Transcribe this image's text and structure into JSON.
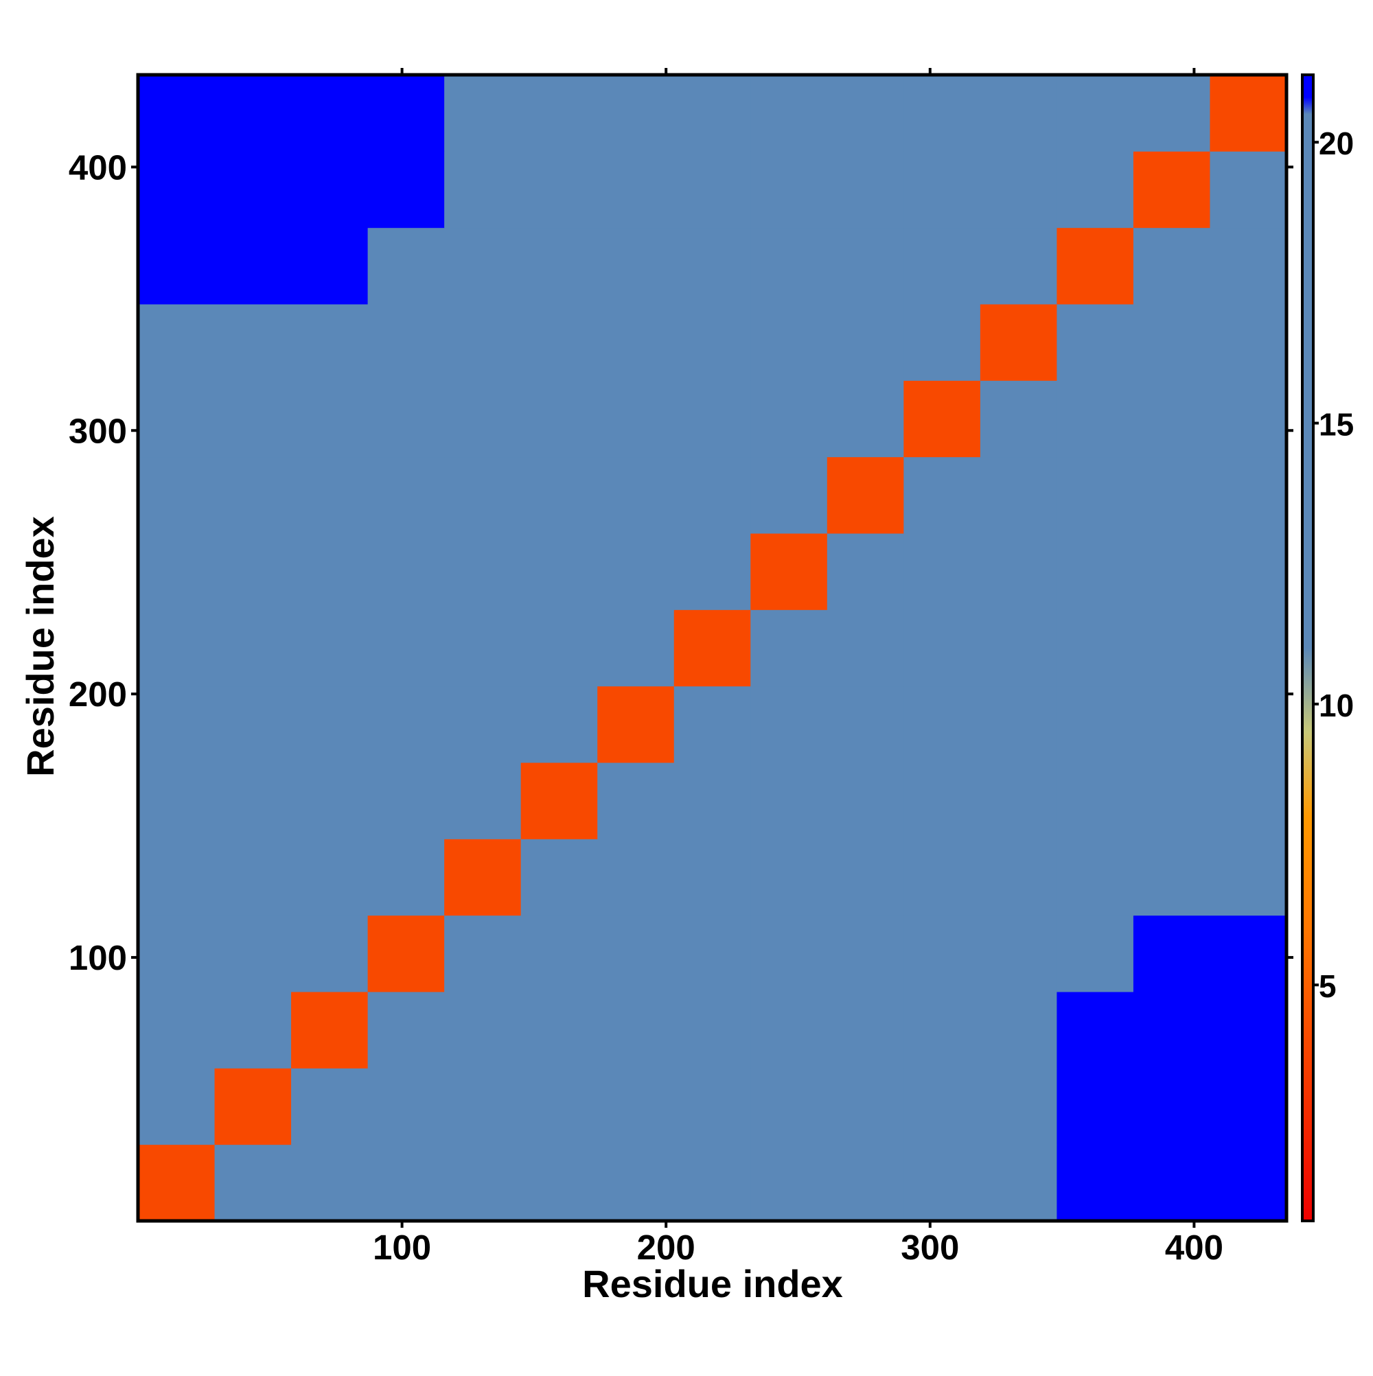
{
  "chart_data": {
    "type": "heatmap",
    "x_label": "Residue index",
    "y_label": "Residue index",
    "bins": [
      0,
      29,
      58,
      87,
      116,
      145,
      174,
      203,
      232,
      261,
      290,
      319,
      348,
      377,
      406,
      435
    ],
    "z": [
      [
        4,
        19,
        20,
        20,
        20,
        20,
        20,
        20,
        20,
        20,
        20,
        20,
        21,
        21,
        21
      ],
      [
        19,
        4,
        13,
        17,
        17,
        17,
        17,
        17,
        17,
        17,
        17,
        13,
        21,
        21,
        21
      ],
      [
        20,
        13,
        4,
        13,
        17,
        17,
        18,
        17,
        17,
        17,
        17,
        17,
        21,
        21,
        21
      ],
      [
        20,
        17,
        13,
        4,
        13,
        17,
        17,
        17,
        17,
        17,
        17,
        17,
        19,
        21,
        21
      ],
      [
        20,
        17,
        17,
        13,
        4,
        13,
        17,
        17,
        17,
        17,
        17,
        17,
        17,
        18,
        19
      ],
      [
        20,
        17,
        17,
        17,
        13,
        4,
        13,
        17,
        17,
        17,
        17,
        17,
        17,
        17,
        17
      ],
      [
        20,
        17,
        18,
        17,
        17,
        13,
        4,
        13,
        17,
        17,
        17,
        17,
        17,
        17,
        17
      ],
      [
        20,
        17,
        17,
        17,
        17,
        17,
        13,
        4,
        13,
        17,
        17,
        17,
        17,
        17,
        18
      ],
      [
        20,
        17,
        17,
        17,
        17,
        17,
        17,
        13,
        4,
        13,
        17,
        17,
        17,
        17,
        17
      ],
      [
        20,
        17,
        17,
        17,
        17,
        17,
        17,
        17,
        13,
        4,
        13,
        17,
        17,
        17,
        17
      ],
      [
        20,
        17,
        17,
        17,
        17,
        17,
        17,
        17,
        17,
        13,
        4,
        13,
        17,
        17,
        17
      ],
      [
        20,
        13,
        17,
        17,
        17,
        17,
        17,
        17,
        17,
        17,
        13,
        4,
        13,
        17,
        17
      ],
      [
        21,
        21,
        21,
        19,
        17,
        17,
        17,
        17,
        17,
        17,
        17,
        13,
        4,
        13,
        17
      ],
      [
        21,
        21,
        21,
        21,
        18,
        17,
        17,
        17,
        17,
        17,
        17,
        17,
        13,
        4,
        13
      ],
      [
        21,
        21,
        21,
        21,
        19,
        17,
        17,
        18,
        17,
        17,
        17,
        17,
        17,
        13,
        4
      ]
    ],
    "xlim": [
      0,
      435
    ],
    "ylim": [
      0,
      435
    ],
    "xticks": [
      100,
      200,
      300,
      400
    ],
    "yticks": [
      100,
      200,
      300,
      400
    ],
    "colorbar": {
      "lim": [
        0.8,
        21.2
      ],
      "ticks": [
        5,
        10,
        15,
        20
      ],
      "scale": [
        {
          "value": 0.8,
          "color": "#ee0000"
        },
        {
          "value": 6,
          "color": "#ff7700"
        },
        {
          "value": 8,
          "color": "#ff9900"
        },
        {
          "value": 9.5,
          "color": "#c8c878"
        },
        {
          "value": 11,
          "color": "#5b88b8"
        },
        {
          "value": 20.5,
          "color": "#5b88b8"
        },
        {
          "value": 20.8,
          "color": "#0000ff"
        },
        {
          "value": 21.2,
          "color": "#0000ff"
        }
      ]
    }
  }
}
